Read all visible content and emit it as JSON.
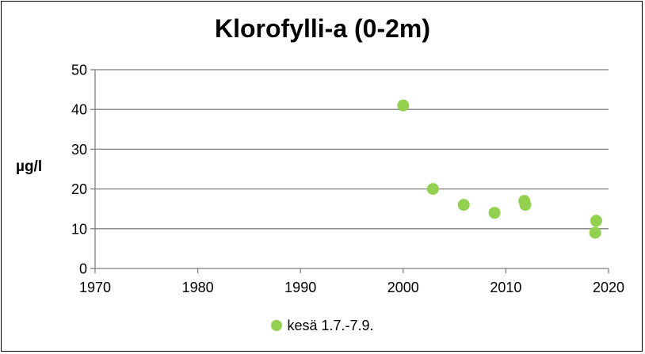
{
  "chart_data": {
    "type": "scatter",
    "title": "Klorofylli-a (0-2m)",
    "ylabel": "µg/l",
    "xlabel": "",
    "xlim": [
      1970,
      2020
    ],
    "ylim": [
      0,
      50
    ],
    "xticks": [
      1970,
      1980,
      1990,
      2000,
      2010,
      2020
    ],
    "yticks": [
      0,
      10,
      20,
      30,
      40,
      50
    ],
    "grid": "horizontal",
    "legend_position": "bottom",
    "series": [
      {
        "name": "kesä 1.7.-7.9.",
        "color": "#92d050",
        "x": [
          2000.0,
          2002.9,
          2005.9,
          2008.9,
          2011.8,
          2011.9,
          2018.8,
          2018.7
        ],
        "y": [
          41,
          20,
          16,
          14,
          17,
          16,
          12,
          9
        ]
      }
    ]
  }
}
